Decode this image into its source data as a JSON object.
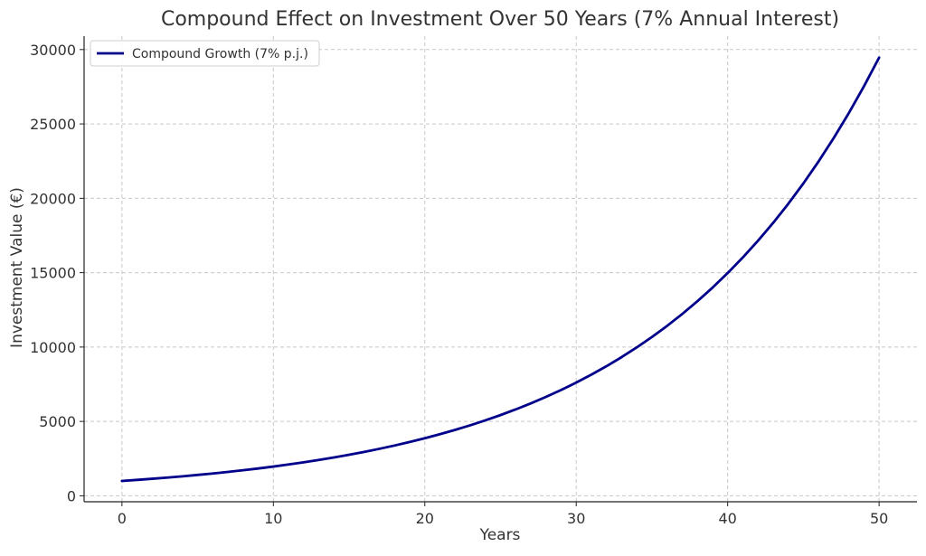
{
  "chart_data": {
    "type": "line",
    "title": "Compound Effect on Investment Over 50 Years (7% Annual Interest)",
    "xlabel": "Years",
    "ylabel": "Investment Value (€)",
    "xlim": [
      -2.5,
      52.5
    ],
    "ylim": [
      -400,
      30900
    ],
    "xticks": [
      0,
      10,
      20,
      30,
      40,
      50
    ],
    "yticks": [
      0,
      5000,
      10000,
      15000,
      20000,
      25000,
      30000
    ],
    "grid": true,
    "legend_position": "top-left",
    "series": [
      {
        "name": "Compound Growth (7% p.j.)",
        "color": "#00008b",
        "x": [
          0,
          1,
          2,
          3,
          4,
          5,
          6,
          7,
          8,
          9,
          10,
          11,
          12,
          13,
          14,
          15,
          16,
          17,
          18,
          19,
          20,
          21,
          22,
          23,
          24,
          25,
          26,
          27,
          28,
          29,
          30,
          31,
          32,
          33,
          34,
          35,
          36,
          37,
          38,
          39,
          40,
          41,
          42,
          43,
          44,
          45,
          46,
          47,
          48,
          49,
          50
        ],
        "y": [
          1000,
          1070,
          1145,
          1225,
          1311,
          1403,
          1501,
          1606,
          1718,
          1838,
          1967,
          2105,
          2252,
          2410,
          2579,
          2759,
          2952,
          3159,
          3380,
          3617,
          3870,
          4141,
          4430,
          4741,
          5072,
          5427,
          5807,
          6214,
          6649,
          7114,
          7612,
          8145,
          8715,
          9325,
          9978,
          10677,
          11424,
          12224,
          13079,
          13995,
          14974,
          16023,
          17144,
          18344,
          19628,
          21002,
          22473,
          24046,
          25729,
          27530,
          29457
        ]
      }
    ]
  }
}
